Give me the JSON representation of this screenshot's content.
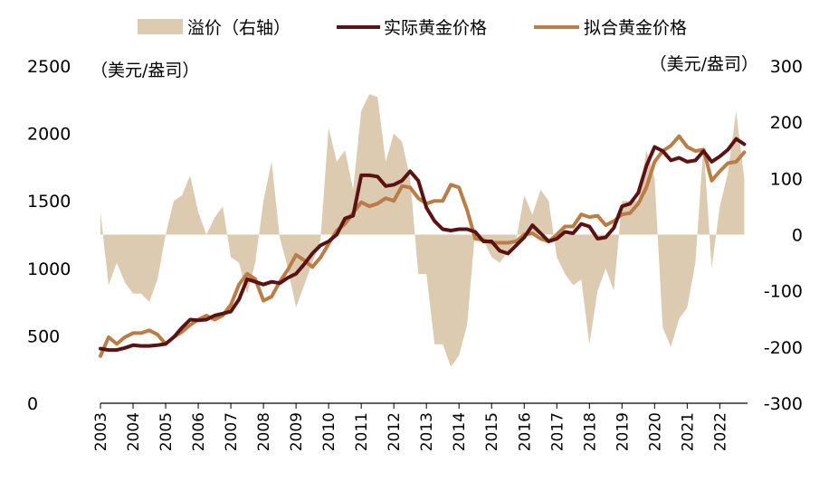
{
  "chart_data": {
    "type": "line",
    "legend": {
      "position": "top",
      "items": [
        {
          "label": "溢价（右轴）",
          "kind": "area",
          "color": "#dccab1"
        },
        {
          "label": "实际黄金价格",
          "kind": "line",
          "color": "#5a1212"
        },
        {
          "label": "拟合黄金价格",
          "kind": "line",
          "color": "#bb7c45"
        }
      ]
    },
    "left_axis": {
      "unit": "（美元/盎司）",
      "ylim": [
        0,
        2500
      ],
      "ticks": [
        "0",
        "500",
        "1000",
        "1500",
        "2000",
        "2500"
      ]
    },
    "right_axis": {
      "unit": "（美元/盎司）",
      "ylim": [
        -300,
        300
      ],
      "ticks": [
        "-300",
        "-200",
        "-100",
        "0",
        "100",
        "200",
        "300"
      ]
    },
    "x_axis": {
      "ticks": [
        "2003",
        "2004",
        "2005",
        "2006",
        "2007",
        "2008",
        "2009",
        "2010",
        "2011",
        "2012",
        "2013",
        "2014",
        "2015",
        "2016",
        "2017",
        "2018",
        "2019",
        "2020",
        "2021",
        "2022"
      ],
      "range": [
        2003,
        2022.85
      ]
    },
    "series": [
      {
        "name": "实际黄金价格",
        "axis": "left",
        "color": "#5a1212",
        "points": [
          [
            2003.0,
            405
          ],
          [
            2003.25,
            395
          ],
          [
            2003.5,
            395
          ],
          [
            2003.75,
            410
          ],
          [
            2004.0,
            430
          ],
          [
            2004.25,
            425
          ],
          [
            2004.5,
            425
          ],
          [
            2004.75,
            430
          ],
          [
            2005.0,
            440
          ],
          [
            2005.25,
            490
          ],
          [
            2005.5,
            560
          ],
          [
            2005.75,
            620
          ],
          [
            2006.0,
            615
          ],
          [
            2006.25,
            620
          ],
          [
            2006.5,
            650
          ],
          [
            2006.75,
            665
          ],
          [
            2007.0,
            680
          ],
          [
            2007.25,
            770
          ],
          [
            2007.5,
            920
          ],
          [
            2007.75,
            900
          ],
          [
            2008.0,
            880
          ],
          [
            2008.25,
            900
          ],
          [
            2008.5,
            890
          ],
          [
            2008.75,
            930
          ],
          [
            2009.0,
            960
          ],
          [
            2009.25,
            1030
          ],
          [
            2009.5,
            1110
          ],
          [
            2009.75,
            1170
          ],
          [
            2010.0,
            1200
          ],
          [
            2010.25,
            1250
          ],
          [
            2010.5,
            1370
          ],
          [
            2010.75,
            1390
          ],
          [
            2011.0,
            1690
          ],
          [
            2011.25,
            1690
          ],
          [
            2011.5,
            1680
          ],
          [
            2011.75,
            1610
          ],
          [
            2012.0,
            1620
          ],
          [
            2012.25,
            1650
          ],
          [
            2012.5,
            1720
          ],
          [
            2012.75,
            1650
          ],
          [
            2013.0,
            1450
          ],
          [
            2013.25,
            1350
          ],
          [
            2013.5,
            1290
          ],
          [
            2013.75,
            1280
          ],
          [
            2014.0,
            1290
          ],
          [
            2014.25,
            1290
          ],
          [
            2014.5,
            1270
          ],
          [
            2014.75,
            1200
          ],
          [
            2015.0,
            1200
          ],
          [
            2015.25,
            1130
          ],
          [
            2015.5,
            1110
          ],
          [
            2015.75,
            1170
          ],
          [
            2016.0,
            1230
          ],
          [
            2016.25,
            1320
          ],
          [
            2016.5,
            1260
          ],
          [
            2016.75,
            1200
          ],
          [
            2017.0,
            1220
          ],
          [
            2017.25,
            1270
          ],
          [
            2017.5,
            1260
          ],
          [
            2017.75,
            1330
          ],
          [
            2018.0,
            1310
          ],
          [
            2018.25,
            1220
          ],
          [
            2018.5,
            1230
          ],
          [
            2018.75,
            1300
          ],
          [
            2019.0,
            1460
          ],
          [
            2019.25,
            1480
          ],
          [
            2019.5,
            1560
          ],
          [
            2019.75,
            1760
          ],
          [
            2020.0,
            1900
          ],
          [
            2020.25,
            1870
          ],
          [
            2020.5,
            1800
          ],
          [
            2020.75,
            1820
          ],
          [
            2021.0,
            1790
          ],
          [
            2021.25,
            1800
          ],
          [
            2021.5,
            1870
          ],
          [
            2021.75,
            1790
          ],
          [
            2022.0,
            1830
          ],
          [
            2022.25,
            1880
          ],
          [
            2022.5,
            1960
          ],
          [
            2022.75,
            1920
          ]
        ]
      },
      {
        "name": "拟合黄金价格",
        "axis": "left",
        "color": "#bb7c45",
        "points": [
          [
            2003.0,
            350
          ],
          [
            2003.25,
            490
          ],
          [
            2003.5,
            440
          ],
          [
            2003.75,
            490
          ],
          [
            2004.0,
            520
          ],
          [
            2004.25,
            520
          ],
          [
            2004.5,
            540
          ],
          [
            2004.75,
            510
          ],
          [
            2005.0,
            440
          ],
          [
            2005.25,
            490
          ],
          [
            2005.5,
            530
          ],
          [
            2005.75,
            580
          ],
          [
            2006.0,
            620
          ],
          [
            2006.25,
            650
          ],
          [
            2006.5,
            620
          ],
          [
            2006.75,
            650
          ],
          [
            2007.0,
            730
          ],
          [
            2007.25,
            880
          ],
          [
            2007.5,
            960
          ],
          [
            2007.75,
            920
          ],
          [
            2008.0,
            760
          ],
          [
            2008.25,
            790
          ],
          [
            2008.5,
            900
          ],
          [
            2008.75,
            990
          ],
          [
            2009.0,
            1100
          ],
          [
            2009.25,
            1060
          ],
          [
            2009.5,
            1010
          ],
          [
            2009.75,
            1080
          ],
          [
            2010.0,
            1180
          ],
          [
            2010.25,
            1280
          ],
          [
            2010.5,
            1330
          ],
          [
            2010.75,
            1410
          ],
          [
            2011.0,
            1490
          ],
          [
            2011.25,
            1460
          ],
          [
            2011.5,
            1480
          ],
          [
            2011.75,
            1520
          ],
          [
            2012.0,
            1500
          ],
          [
            2012.25,
            1610
          ],
          [
            2012.5,
            1600
          ],
          [
            2012.75,
            1520
          ],
          [
            2013.0,
            1480
          ],
          [
            2013.25,
            1500
          ],
          [
            2013.5,
            1500
          ],
          [
            2013.75,
            1620
          ],
          [
            2014.0,
            1600
          ],
          [
            2014.25,
            1430
          ],
          [
            2014.5,
            1220
          ],
          [
            2014.75,
            1210
          ],
          [
            2015.0,
            1190
          ],
          [
            2015.25,
            1190
          ],
          [
            2015.5,
            1190
          ],
          [
            2015.75,
            1200
          ],
          [
            2016.0,
            1250
          ],
          [
            2016.25,
            1260
          ],
          [
            2016.5,
            1220
          ],
          [
            2016.75,
            1200
          ],
          [
            2017.0,
            1250
          ],
          [
            2017.25,
            1310
          ],
          [
            2017.5,
            1310
          ],
          [
            2017.75,
            1400
          ],
          [
            2018.0,
            1380
          ],
          [
            2018.25,
            1390
          ],
          [
            2018.5,
            1320
          ],
          [
            2018.75,
            1350
          ],
          [
            2019.0,
            1400
          ],
          [
            2019.25,
            1410
          ],
          [
            2019.5,
            1480
          ],
          [
            2019.75,
            1600
          ],
          [
            2020.0,
            1790
          ],
          [
            2020.25,
            1870
          ],
          [
            2020.5,
            1910
          ],
          [
            2020.75,
            1980
          ],
          [
            2021.0,
            1900
          ],
          [
            2021.25,
            1870
          ],
          [
            2021.5,
            1880
          ],
          [
            2021.75,
            1650
          ],
          [
            2022.0,
            1720
          ],
          [
            2022.25,
            1780
          ],
          [
            2022.5,
            1790
          ],
          [
            2022.75,
            1860
          ]
        ]
      },
      {
        "name": "溢价（右轴）",
        "axis": "right",
        "color": "#dccab1",
        "points": [
          [
            2003.0,
            40
          ],
          [
            2003.25,
            -90
          ],
          [
            2003.5,
            -50
          ],
          [
            2003.75,
            -85
          ],
          [
            2004.0,
            -105
          ],
          [
            2004.25,
            -105
          ],
          [
            2004.5,
            -120
          ],
          [
            2004.75,
            -80
          ],
          [
            2005.0,
            0
          ],
          [
            2005.25,
            60
          ],
          [
            2005.5,
            70
          ],
          [
            2005.75,
            105
          ],
          [
            2006.0,
            40
          ],
          [
            2006.25,
            0
          ],
          [
            2006.5,
            30
          ],
          [
            2006.75,
            50
          ],
          [
            2007.0,
            -40
          ],
          [
            2007.25,
            -50
          ],
          [
            2007.5,
            -105
          ],
          [
            2007.75,
            -50
          ],
          [
            2008.0,
            60
          ],
          [
            2008.25,
            130
          ],
          [
            2008.5,
            -5
          ],
          [
            2008.75,
            -60
          ],
          [
            2009.0,
            -130
          ],
          [
            2009.25,
            -90
          ],
          [
            2009.5,
            -50
          ],
          [
            2009.75,
            -10
          ],
          [
            2010.0,
            190
          ],
          [
            2010.25,
            130
          ],
          [
            2010.5,
            150
          ],
          [
            2010.75,
            80
          ],
          [
            2011.0,
            220
          ],
          [
            2011.25,
            250
          ],
          [
            2011.5,
            245
          ],
          [
            2011.75,
            130
          ],
          [
            2012.0,
            180
          ],
          [
            2012.25,
            165
          ],
          [
            2012.5,
            100
          ],
          [
            2012.75,
            -70
          ],
          [
            2013.0,
            -70
          ],
          [
            2013.25,
            -195
          ],
          [
            2013.5,
            -195
          ],
          [
            2013.75,
            -235
          ],
          [
            2014.0,
            -215
          ],
          [
            2014.25,
            -160
          ],
          [
            2014.5,
            10
          ],
          [
            2014.75,
            -10
          ],
          [
            2015.0,
            -40
          ],
          [
            2015.25,
            -50
          ],
          [
            2015.5,
            -30
          ],
          [
            2015.75,
            -10
          ],
          [
            2016.0,
            70
          ],
          [
            2016.25,
            35
          ],
          [
            2016.5,
            80
          ],
          [
            2016.75,
            60
          ],
          [
            2017.0,
            -40
          ],
          [
            2017.25,
            -70
          ],
          [
            2017.5,
            -90
          ],
          [
            2017.75,
            -80
          ],
          [
            2018.0,
            -195
          ],
          [
            2018.25,
            -100
          ],
          [
            2018.5,
            -60
          ],
          [
            2018.75,
            -100
          ],
          [
            2019.0,
            60
          ],
          [
            2019.25,
            60
          ],
          [
            2019.5,
            60
          ],
          [
            2019.75,
            150
          ],
          [
            2020.0,
            100
          ],
          [
            2020.25,
            -165
          ],
          [
            2020.5,
            -200
          ],
          [
            2020.75,
            -150
          ],
          [
            2021.0,
            -130
          ],
          [
            2021.25,
            -50
          ],
          [
            2021.5,
            160
          ],
          [
            2021.75,
            -60
          ],
          [
            2022.0,
            50
          ],
          [
            2022.25,
            110
          ],
          [
            2022.5,
            220
          ],
          [
            2022.75,
            100
          ]
        ]
      }
    ]
  }
}
